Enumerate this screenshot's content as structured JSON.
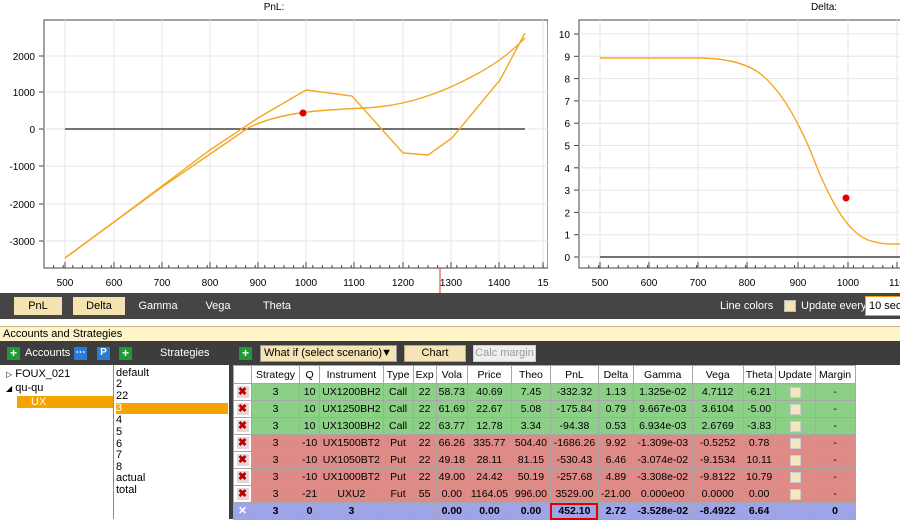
{
  "pnl_chart": {
    "title": "PnL:",
    "x_ticks": [
      "500",
      "600",
      "700",
      "800",
      "900",
      "1000",
      "1100",
      "1200",
      "1300",
      "1400",
      "15"
    ],
    "y_ticks": [
      "2000",
      "1000",
      "0",
      "-1000",
      "-2000",
      "-3000"
    ],
    "current_point": {
      "x": 990,
      "y": 420
    },
    "line_color": "#f5a623",
    "marker_color": "#e00000"
  },
  "delta_chart": {
    "title": "Delta:",
    "x_ticks": [
      "500",
      "600",
      "700",
      "800",
      "900",
      "1000",
      "110"
    ],
    "y_ticks": [
      "10",
      "9",
      "8",
      "7",
      "6",
      "5",
      "4",
      "3",
      "2",
      "1",
      "0"
    ],
    "current_point": {
      "x": 997,
      "y": 2.7
    }
  },
  "tabs": [
    "PnL",
    "Delta",
    "Gamma",
    "Vega",
    "Theta"
  ],
  "line_colors_label": "Line colors",
  "update_every_label": "Update every",
  "update_every_value": "10 sec",
  "accounts_header": "Accounts and Strategies",
  "left_toolbar": {
    "accounts_label": "Accounts",
    "strategies_label": "Strategies"
  },
  "accounts": [
    {
      "label": "FOUX_021",
      "arrow": "▷"
    },
    {
      "label": "qu-qu",
      "arrow": "◢"
    },
    {
      "label": "UX",
      "arrow": ""
    }
  ],
  "strategies": [
    "default",
    "2",
    "22",
    "3",
    "4",
    "5",
    "6",
    "7",
    "8",
    "actual",
    "total"
  ],
  "right_toolbar": {
    "scenario": "What if (select scenario)",
    "chart_button": "Chart",
    "calc_margin_button": "Calc margin"
  },
  "table": {
    "headers": [
      "",
      "Strategy",
      "Q",
      "Instrument",
      "Type",
      "Exp",
      "Vola",
      "Price",
      "Theo",
      "PnL",
      "Delta",
      "Gamma",
      "Vega",
      "Theta",
      "Update",
      "Margin"
    ],
    "rows": [
      {
        "kind": "call",
        "cells": [
          "3",
          "10",
          "UX1200BH2",
          "Call",
          "22",
          "58.73",
          "40.69",
          "7.45",
          "-332.32",
          "1.13",
          "1.325e-02",
          "4.7112",
          "-6.21",
          "-"
        ]
      },
      {
        "kind": "call",
        "cells": [
          "3",
          "10",
          "UX1250BH2",
          "Call",
          "22",
          "61.69",
          "22.67",
          "5.08",
          "-175.84",
          "0.79",
          "9.667e-03",
          "3.6104",
          "-5.00",
          "-"
        ]
      },
      {
        "kind": "call",
        "cells": [
          "3",
          "10",
          "UX1300BH2",
          "Call",
          "22",
          "63.77",
          "12.78",
          "3.34",
          "-94.38",
          "0.53",
          "6.934e-03",
          "2.6769",
          "-3.83",
          "-"
        ]
      },
      {
        "kind": "put",
        "cells": [
          "3",
          "-10",
          "UX1500BT2",
          "Put",
          "22",
          "66.26",
          "335.77",
          "504.40",
          "-1686.26",
          "9.92",
          "-1.309e-03",
          "-0.5252",
          "0.78",
          "-"
        ]
      },
      {
        "kind": "put",
        "cells": [
          "3",
          "-10",
          "UX1050BT2",
          "Put",
          "22",
          "49.18",
          "28.11",
          "81.15",
          "-530.43",
          "6.46",
          "-3.074e-02",
          "-9.1534",
          "10.11",
          "-"
        ]
      },
      {
        "kind": "put",
        "cells": [
          "3",
          "-10",
          "UX1000BT2",
          "Put",
          "22",
          "49.00",
          "24.42",
          "50.19",
          "-257.68",
          "4.89",
          "-3.308e-02",
          "-9.8122",
          "10.79",
          "-"
        ]
      },
      {
        "kind": "put",
        "cells": [
          "3",
          "-21",
          "UXU2",
          "Fut",
          "55",
          "0.00",
          "1164.05",
          "996.00",
          "3529.00",
          "-21.00",
          "0.000e00",
          "0.0000",
          "0.00",
          "-"
        ]
      }
    ],
    "total": [
      "3",
      "0",
      "3",
      "",
      "",
      "0.00",
      "0.00",
      "0.00",
      "452.10",
      "2.72",
      "-3.528e-02",
      "-8.4922",
      "6.64",
      "",
      "0"
    ]
  }
}
